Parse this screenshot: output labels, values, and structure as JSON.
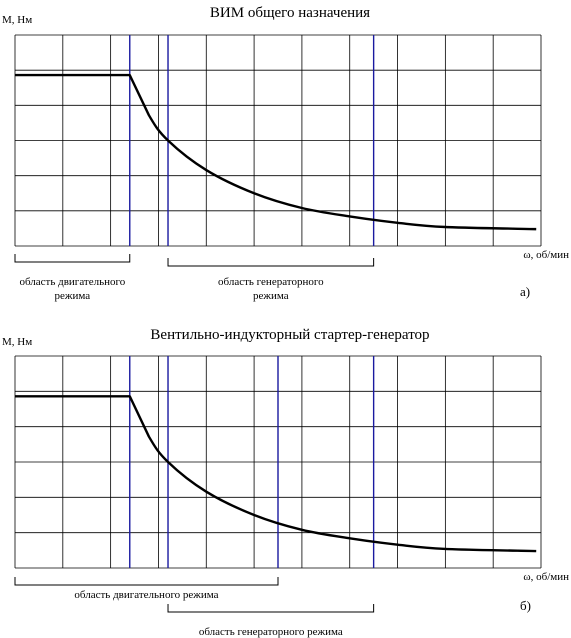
{
  "chart_data": [
    {
      "type": "line",
      "title": "ВИМ общего назначения",
      "ylabel": "M, Нм",
      "xlabel": "ω, об/мин",
      "panel_label": "а)",
      "grid": true,
      "curve": [
        [
          0,
          0.81
        ],
        [
          2.4,
          0.81
        ],
        [
          2.8,
          0.62
        ],
        [
          3.2,
          0.5
        ],
        [
          4,
          0.36
        ],
        [
          5,
          0.25
        ],
        [
          6,
          0.18
        ],
        [
          7,
          0.14
        ],
        [
          8,
          0.11
        ],
        [
          9,
          0.09
        ],
        [
          10.9,
          0.08
        ]
      ],
      "markers": [
        {
          "x": 2.4,
          "color": "#1a1aa0"
        },
        {
          "x": 3.2,
          "color": "#1a1aa0"
        },
        {
          "x": 7.5,
          "color": "#1a1aa0"
        }
      ],
      "regions": [
        {
          "label_lines": [
            "область двигательного",
            "режима"
          ],
          "from": 0,
          "to": 2.4,
          "row": "upper"
        },
        {
          "label_lines": [
            "область генераторного",
            "режима"
          ],
          "from": 3.2,
          "to": 7.5,
          "row": "lower"
        }
      ]
    },
    {
      "type": "line",
      "title": "Вентильно-индукторный стартер-генератор",
      "ylabel": "M, Нм",
      "xlabel": "ω, об/мин",
      "panel_label": "б)",
      "grid": true,
      "curve": [
        [
          0,
          0.81
        ],
        [
          2.4,
          0.81
        ],
        [
          2.8,
          0.62
        ],
        [
          3.2,
          0.5
        ],
        [
          4,
          0.36
        ],
        [
          5,
          0.25
        ],
        [
          6,
          0.18
        ],
        [
          7,
          0.14
        ],
        [
          8,
          0.11
        ],
        [
          9,
          0.09
        ],
        [
          10.9,
          0.08
        ]
      ],
      "markers": [
        {
          "x": 2.4,
          "color": "#1a1aa0"
        },
        {
          "x": 3.2,
          "color": "#1a1aa0"
        },
        {
          "x": 5.5,
          "color": "#1a1aa0"
        },
        {
          "x": 7.5,
          "color": "#1a1aa0"
        }
      ],
      "regions": [
        {
          "label_lines": [
            "область двигательного режима"
          ],
          "from": 0,
          "to": 5.5,
          "row": "upper"
        },
        {
          "label_lines": [
            "область генераторного режима"
          ],
          "from": 3.2,
          "to": 7.5,
          "row": "lower"
        }
      ]
    }
  ]
}
